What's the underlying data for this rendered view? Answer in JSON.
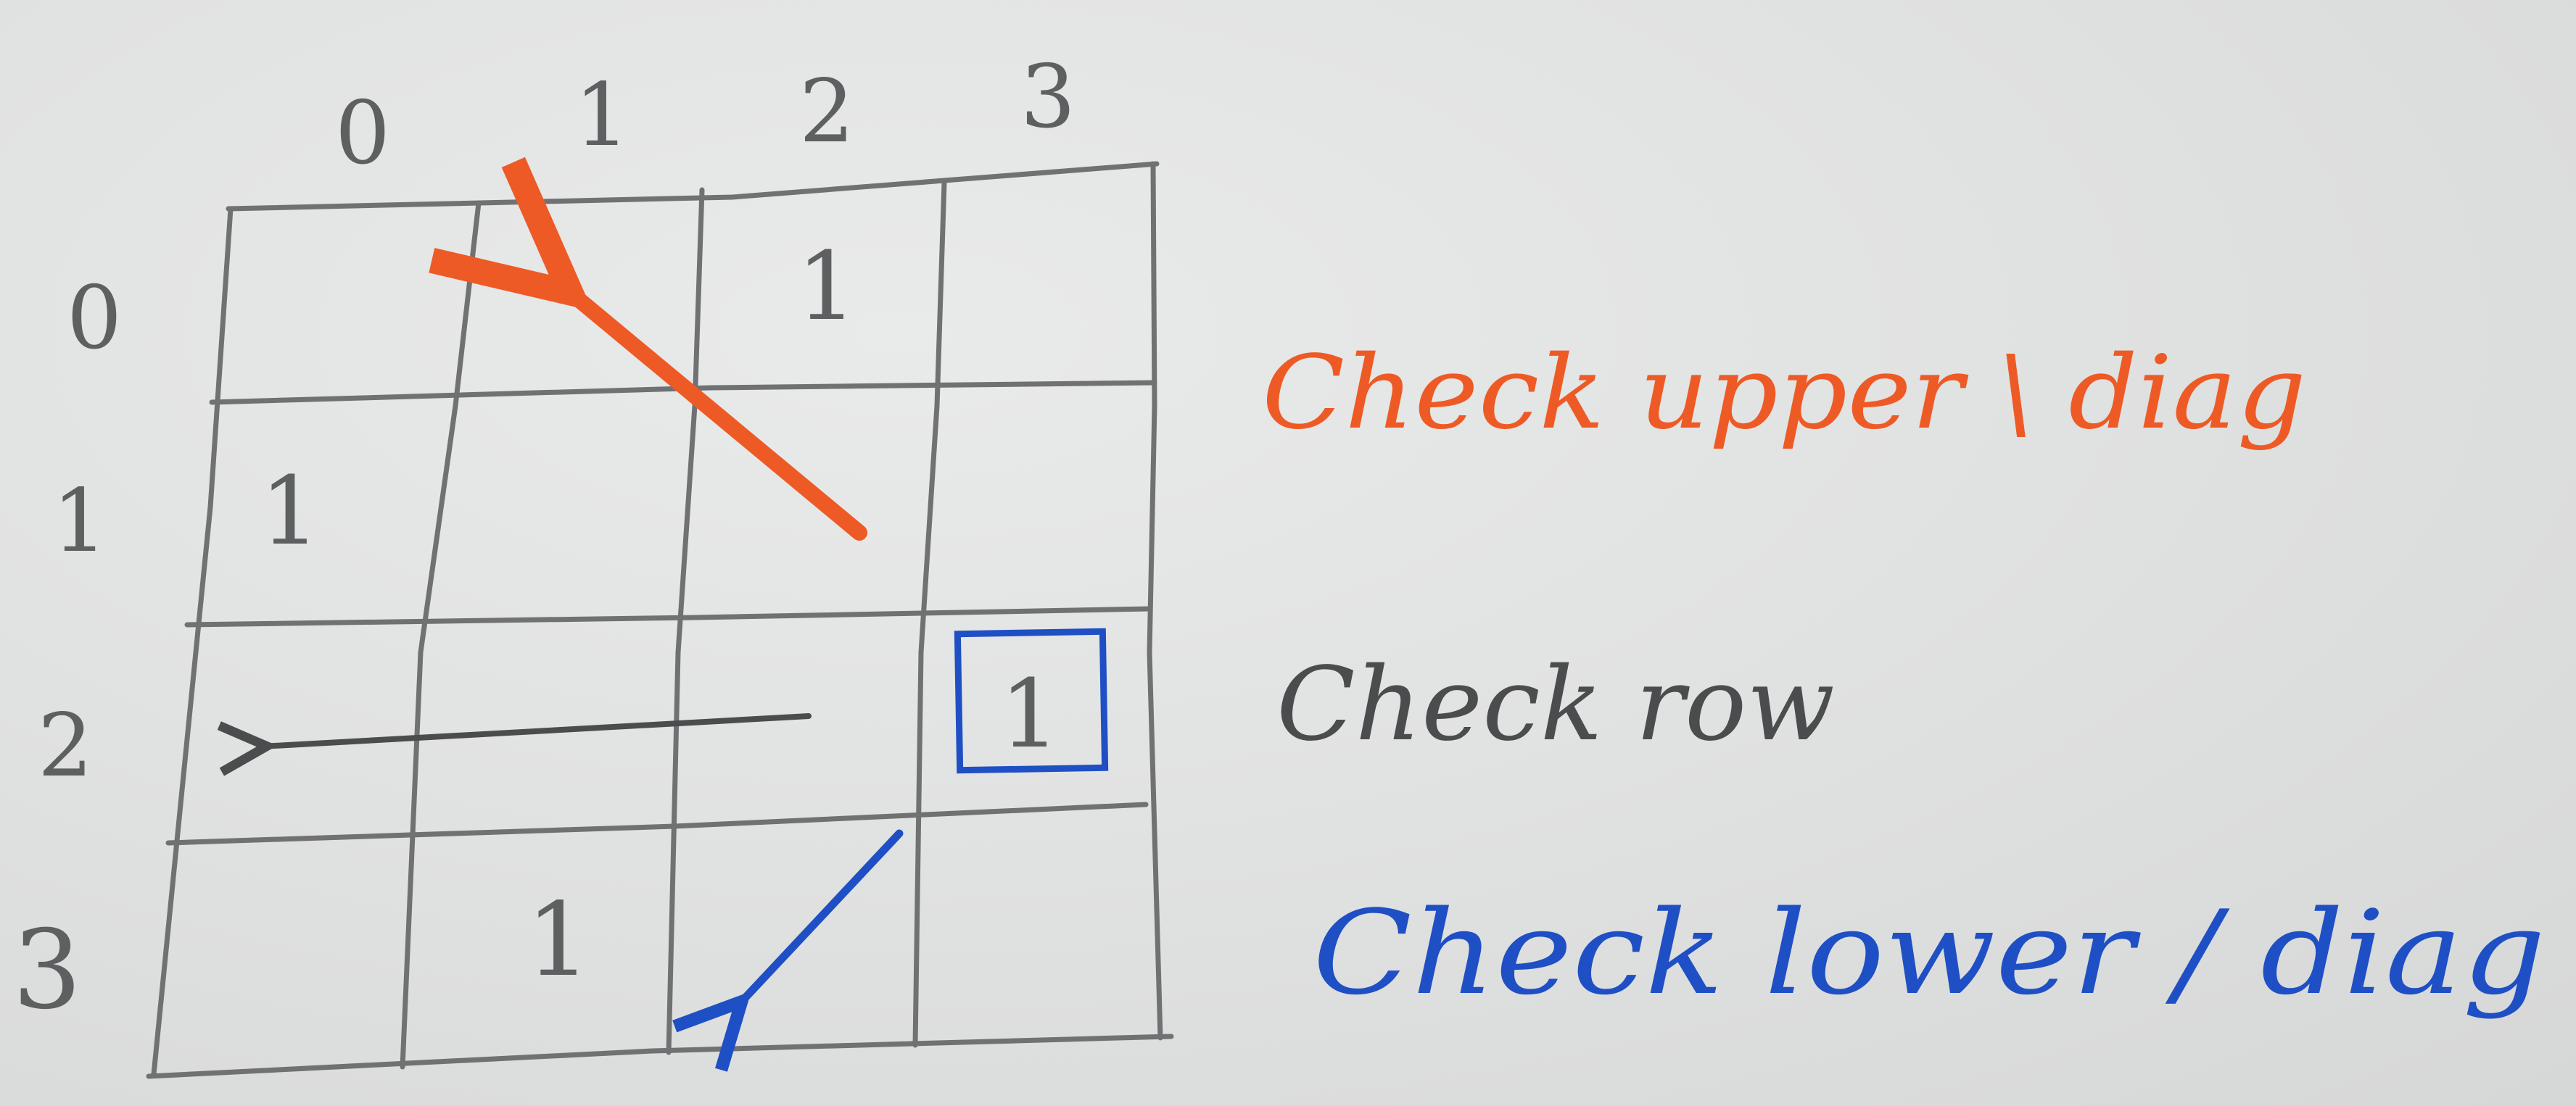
{
  "grid": {
    "column_labels": [
      "0",
      "1",
      "2",
      "3"
    ],
    "row_labels": [
      "0",
      "1",
      "2",
      "3"
    ],
    "cells": [
      {
        "row": 0,
        "col": 2,
        "value": "1"
      },
      {
        "row": 1,
        "col": 0,
        "value": "1"
      },
      {
        "row": 2,
        "col": 3,
        "value": "1"
      },
      {
        "row": 3,
        "col": 1,
        "value": "1"
      }
    ],
    "highlighted_cell": {
      "row": 2,
      "col": 3
    }
  },
  "annotations": {
    "upper_diag": "Check upper \\ diag",
    "row": "Check row",
    "lower_diag": "Check lower / diag"
  },
  "colors": {
    "pencil": "#5d5f60",
    "red": "#ee5a25",
    "black": "#4a4c4d",
    "blue": "#1f4fc4",
    "paper": "#e1e2e2"
  }
}
